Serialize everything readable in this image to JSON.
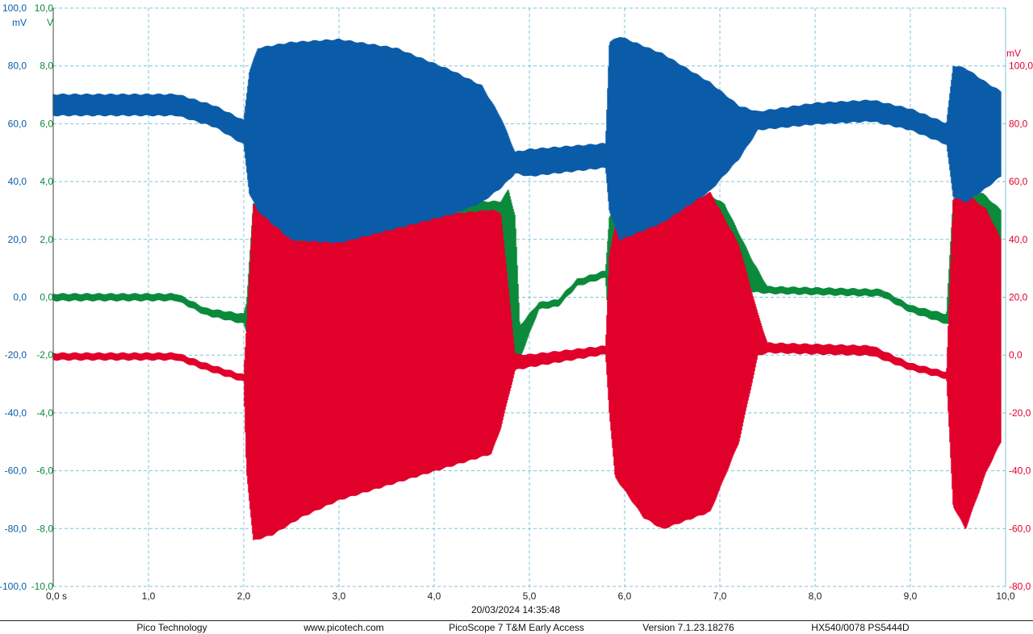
{
  "chart_data": {
    "type": "line",
    "title": "",
    "timestamp": "20/03/2024 14:35:48",
    "x_axis": {
      "unit": "s",
      "range": [
        0,
        10
      ],
      "tick_labels": [
        "0,0 s",
        "1,0",
        "2,0",
        "3,0",
        "4,0",
        "5,0",
        "6,0",
        "7,0",
        "8,0",
        "9,0",
        "10,0"
      ]
    },
    "y_axes": [
      {
        "id": "blue",
        "unit": "mV",
        "color": "#0a5ca8",
        "side": "left",
        "range": [
          -100,
          100
        ],
        "tick_labels": [
          "100,0",
          "80,0",
          "60,0",
          "40,0",
          "20,0",
          "0,0",
          "-20,0",
          "-40,0",
          "-60,0",
          "-80,0",
          "-100,0"
        ]
      },
      {
        "id": "green",
        "unit": "V",
        "color": "#0a8a3a",
        "side": "left",
        "range": [
          -10,
          10
        ],
        "tick_labels": [
          "10,0",
          "8,0",
          "6,0",
          "4,0",
          "2,0",
          "0,0",
          "-2,0",
          "-4,0",
          "-6,0",
          "-8,0",
          "-10,0"
        ]
      },
      {
        "id": "red",
        "unit": "mV",
        "color": "#e0002a",
        "side": "right",
        "range": [
          -80,
          120
        ],
        "tick_labels": [
          "100,0",
          "80,0",
          "60,0",
          "40,0",
          "20,0",
          "0,0",
          "-20,0",
          "-40,0",
          "-60,0",
          "-80,0"
        ]
      }
    ],
    "grid": true,
    "series": [
      {
        "id": "green",
        "axis": "green",
        "color": "#0a8a3a",
        "envelope": [
          {
            "t": 0.0,
            "hi": 0.1,
            "lo": -0.1
          },
          {
            "t": 1.3,
            "hi": 0.1,
            "lo": -0.1
          },
          {
            "t": 1.6,
            "hi": -0.4,
            "lo": -0.6
          },
          {
            "t": 2.0,
            "hi": -0.6,
            "lo": -0.9
          },
          {
            "t": 2.03,
            "hi": -0.2,
            "lo": -1.2
          },
          {
            "t": 2.1,
            "hi": 3.2,
            "lo": -1.6
          },
          {
            "t": 4.7,
            "hi": 3.3,
            "lo": -1.6
          },
          {
            "t": 4.78,
            "hi": 3.7,
            "lo": -0.8
          },
          {
            "t": 4.85,
            "hi": 2.8,
            "lo": -2.0
          },
          {
            "t": 4.9,
            "hi": -1.0,
            "lo": -2.1
          },
          {
            "t": 5.1,
            "hi": -0.2,
            "lo": -0.4
          },
          {
            "t": 5.3,
            "hi": -0.1,
            "lo": -0.3
          },
          {
            "t": 5.5,
            "hi": 0.6,
            "lo": 0.4
          },
          {
            "t": 5.8,
            "hi": 0.9,
            "lo": 0.7
          },
          {
            "t": 5.84,
            "hi": 2.8,
            "lo": -1.5
          },
          {
            "t": 6.9,
            "hi": 3.5,
            "lo": -1.5
          },
          {
            "t": 7.05,
            "hi": 3.2,
            "lo": 0.6
          },
          {
            "t": 7.35,
            "hi": 1.2,
            "lo": 0.2
          },
          {
            "t": 7.5,
            "hi": 0.35,
            "lo": 0.15
          },
          {
            "t": 8.7,
            "hi": 0.25,
            "lo": 0.05
          },
          {
            "t": 9.0,
            "hi": -0.3,
            "lo": -0.5
          },
          {
            "t": 9.38,
            "hi": -0.6,
            "lo": -0.9
          },
          {
            "t": 9.45,
            "hi": 3.4,
            "lo": -1.0
          },
          {
            "t": 9.75,
            "hi": 3.6,
            "lo": 2.8
          },
          {
            "t": 9.95,
            "hi": 3.0,
            "lo": 2.0
          }
        ]
      },
      {
        "id": "red",
        "axis": "red",
        "color": "#e0002a",
        "envelope": [
          {
            "t": 0.0,
            "hi": 0.5,
            "lo": -1.5
          },
          {
            "t": 1.3,
            "hi": 0.5,
            "lo": -1.5
          },
          {
            "t": 1.6,
            "hi": -3.0,
            "lo": -5.0
          },
          {
            "t": 2.0,
            "hi": -7.0,
            "lo": -9.0
          },
          {
            "t": 2.03,
            "hi": 10.0,
            "lo": -40.0
          },
          {
            "t": 2.1,
            "hi": 52.0,
            "lo": -64.0
          },
          {
            "t": 2.3,
            "hi": 45.0,
            "lo": -62.0
          },
          {
            "t": 2.6,
            "hi": 39.0,
            "lo": -56.0
          },
          {
            "t": 3.0,
            "hi": 42.0,
            "lo": -50.0
          },
          {
            "t": 4.0,
            "hi": 48.0,
            "lo": -40.0
          },
          {
            "t": 4.6,
            "hi": 50.0,
            "lo": -34.0
          },
          {
            "t": 4.7,
            "hi": 49.0,
            "lo": -25.0
          },
          {
            "t": 4.85,
            "hi": 0.0,
            "lo": -5.0
          },
          {
            "t": 5.0,
            "hi": 0.0,
            "lo": -4.0
          },
          {
            "t": 5.8,
            "hi": 3.0,
            "lo": 0.5
          },
          {
            "t": 5.84,
            "hi": 35.0,
            "lo": -20.0
          },
          {
            "t": 5.9,
            "hi": 44.0,
            "lo": -42.0
          },
          {
            "t": 6.2,
            "hi": 45.0,
            "lo": -56.0
          },
          {
            "t": 6.4,
            "hi": 48.0,
            "lo": -60.0
          },
          {
            "t": 6.9,
            "hi": 56.0,
            "lo": -54.0
          },
          {
            "t": 7.2,
            "hi": 38.0,
            "lo": -30.0
          },
          {
            "t": 7.4,
            "hi": 14.0,
            "lo": 0.0
          },
          {
            "t": 7.5,
            "hi": 4.0,
            "lo": 1.0
          },
          {
            "t": 8.6,
            "hi": 3.0,
            "lo": 0.0
          },
          {
            "t": 9.0,
            "hi": -3.0,
            "lo": -5.0
          },
          {
            "t": 9.38,
            "hi": -6.0,
            "lo": -8.0
          },
          {
            "t": 9.45,
            "hi": 54.0,
            "lo": -52.0
          },
          {
            "t": 9.58,
            "hi": 56.0,
            "lo": -60.0
          },
          {
            "t": 9.8,
            "hi": 50.0,
            "lo": -40.0
          },
          {
            "t": 9.95,
            "hi": 40.0,
            "lo": -30.0
          }
        ]
      },
      {
        "id": "blue",
        "axis": "blue",
        "color": "#0a5ca8",
        "envelope": [
          {
            "t": 0.0,
            "hi": 70.0,
            "lo": 63.0
          },
          {
            "t": 1.3,
            "hi": 70.0,
            "lo": 63.0
          },
          {
            "t": 1.7,
            "hi": 66.0,
            "lo": 59.0
          },
          {
            "t": 2.0,
            "hi": 61.0,
            "lo": 53.0
          },
          {
            "t": 2.06,
            "hi": 78.0,
            "lo": 36.0
          },
          {
            "t": 2.15,
            "hi": 86.0,
            "lo": 30.0
          },
          {
            "t": 2.5,
            "hi": 88.0,
            "lo": 20.0
          },
          {
            "t": 3.0,
            "hi": 89.0,
            "lo": 19.0
          },
          {
            "t": 3.6,
            "hi": 86.0,
            "lo": 24.0
          },
          {
            "t": 4.2,
            "hi": 78.0,
            "lo": 29.0
          },
          {
            "t": 4.5,
            "hi": 73.0,
            "lo": 33.0
          },
          {
            "t": 4.7,
            "hi": 62.0,
            "lo": 38.0
          },
          {
            "t": 4.85,
            "hi": 50.0,
            "lo": 43.0
          },
          {
            "t": 5.0,
            "hi": 51.0,
            "lo": 42.0
          },
          {
            "t": 5.8,
            "hi": 53.0,
            "lo": 45.0
          },
          {
            "t": 5.84,
            "hi": 88.0,
            "lo": 30.0
          },
          {
            "t": 5.95,
            "hi": 90.0,
            "lo": 20.0
          },
          {
            "t": 6.4,
            "hi": 84.0,
            "lo": 26.0
          },
          {
            "t": 6.9,
            "hi": 74.0,
            "lo": 37.0
          },
          {
            "t": 7.2,
            "hi": 66.0,
            "lo": 48.0
          },
          {
            "t": 7.4,
            "hi": 64.0,
            "lo": 58.0
          },
          {
            "t": 8.0,
            "hi": 67.0,
            "lo": 60.0
          },
          {
            "t": 8.6,
            "hi": 68.0,
            "lo": 61.0
          },
          {
            "t": 9.0,
            "hi": 65.0,
            "lo": 58.0
          },
          {
            "t": 9.38,
            "hi": 60.0,
            "lo": 53.0
          },
          {
            "t": 9.45,
            "hi": 80.0,
            "lo": 35.0
          },
          {
            "t": 9.58,
            "hi": 79.0,
            "lo": 33.0
          },
          {
            "t": 9.8,
            "hi": 74.0,
            "lo": 38.0
          },
          {
            "t": 9.95,
            "hi": 71.0,
            "lo": 42.0
          }
        ]
      }
    ]
  },
  "footer": {
    "company": "Pico Technology",
    "website": "www.picotech.com",
    "product": "PicoScope 7 T&M Early Access",
    "version": "Version 7.1.23.18276",
    "device": "HX540/0078 PS5444D"
  }
}
